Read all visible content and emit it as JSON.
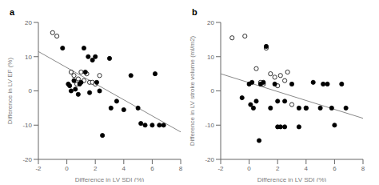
{
  "chart_data": [
    {
      "type": "scatter",
      "title": "a",
      "x_label": "Difference in LV SDI (%)",
      "y_label": "Difference in LV EF (%)",
      "xlim": [
        -2,
        8
      ],
      "ylim": [
        -20,
        20
      ],
      "xticks": [
        -2,
        0,
        2,
        4,
        6,
        8
      ],
      "yticks": [
        -20,
        -10,
        0,
        10,
        20
      ],
      "series": [
        {
          "type": "line",
          "color": "#888888",
          "x": [
            -2,
            8
          ],
          "values": [
            11.5,
            -12.0
          ]
        },
        {
          "type": "scatter",
          "marker": "open",
          "color": "#000000",
          "x": [
            -1.0,
            -0.7,
            0.3,
            0.5,
            0.7,
            0.8,
            1.0,
            1.2,
            1.4,
            1.6,
            1.8,
            2.0,
            2.3
          ],
          "values": [
            17.0,
            16.0,
            5.5,
            4.5,
            2.0,
            3.5,
            5.5,
            3.0,
            5.0,
            2.5,
            2.5,
            2.0,
            4.5
          ]
        },
        {
          "type": "scatter",
          "marker": "filled",
          "color": "#000000",
          "x": [
            -0.3,
            0.1,
            0.2,
            0.3,
            0.5,
            0.6,
            0.8,
            0.9,
            1.0,
            1.2,
            1.3,
            1.5,
            1.6,
            1.8,
            2.0,
            2.1,
            2.3,
            2.5,
            3.0,
            3.1,
            3.5,
            4.0,
            4.5,
            5.0,
            5.2,
            5.5,
            6.0,
            6.2,
            6.5,
            6.8
          ],
          "values": [
            12.5,
            2.0,
            1.5,
            0.0,
            3.0,
            0.5,
            -1.0,
            2.0,
            2.5,
            12.5,
            5.5,
            10.0,
            -0.5,
            9.0,
            10.0,
            2.5,
            0.0,
            -13.0,
            9.5,
            -5.0,
            -3.0,
            -5.5,
            4.5,
            -5.0,
            -9.5,
            -10.0,
            -10.0,
            5.0,
            -10.0,
            -10.0
          ]
        }
      ]
    },
    {
      "type": "scatter",
      "title": "b",
      "x_label": "Difference in LV SDI (%)",
      "y_label": "Difference in LV stroke volume (ml/m2)",
      "xlim": [
        -2,
        8
      ],
      "ylim": [
        -20,
        20
      ],
      "xticks": [
        -2,
        0,
        2,
        4,
        6,
        8
      ],
      "yticks": [
        -20,
        -10,
        0,
        10,
        20
      ],
      "series": [
        {
          "type": "line",
          "color": "#888888",
          "x": [
            -2,
            8
          ],
          "values": [
            5.0,
            -8.0
          ]
        },
        {
          "type": "scatter",
          "marker": "open",
          "color": "#000000",
          "x": [
            -1.2,
            -0.3,
            0.5,
            0.8,
            1.0,
            1.2,
            1.5,
            1.8,
            2.0,
            2.2,
            2.5,
            2.7,
            3.0
          ],
          "values": [
            15.5,
            16.0,
            6.5,
            2.5,
            2.0,
            12.5,
            5.0,
            4.0,
            1.5,
            4.5,
            3.0,
            5.5,
            -4.0
          ]
        },
        {
          "type": "scatter",
          "marker": "filled",
          "color": "#000000",
          "x": [
            -0.5,
            0.0,
            0.1,
            0.2,
            0.3,
            0.5,
            0.7,
            0.8,
            1.0,
            1.2,
            1.5,
            1.8,
            2.0,
            2.0,
            2.2,
            2.5,
            2.5,
            3.0,
            3.5,
            3.5,
            4.0,
            4.0,
            4.5,
            5.0,
            5.2,
            5.5,
            5.8,
            6.0,
            6.5,
            6.8
          ],
          "values": [
            -2.0,
            2.0,
            -4.0,
            2.5,
            -5.0,
            -3.0,
            -14.5,
            2.0,
            2.5,
            13.0,
            -5.0,
            2.0,
            -3.0,
            -10.5,
            -10.5,
            -3.0,
            -10.5,
            2.0,
            -10.5,
            -5.0,
            -5.0,
            -5.0,
            2.5,
            -5.0,
            2.0,
            2.0,
            -5.0,
            -10.0,
            2.0,
            -5.0
          ]
        }
      ]
    }
  ]
}
